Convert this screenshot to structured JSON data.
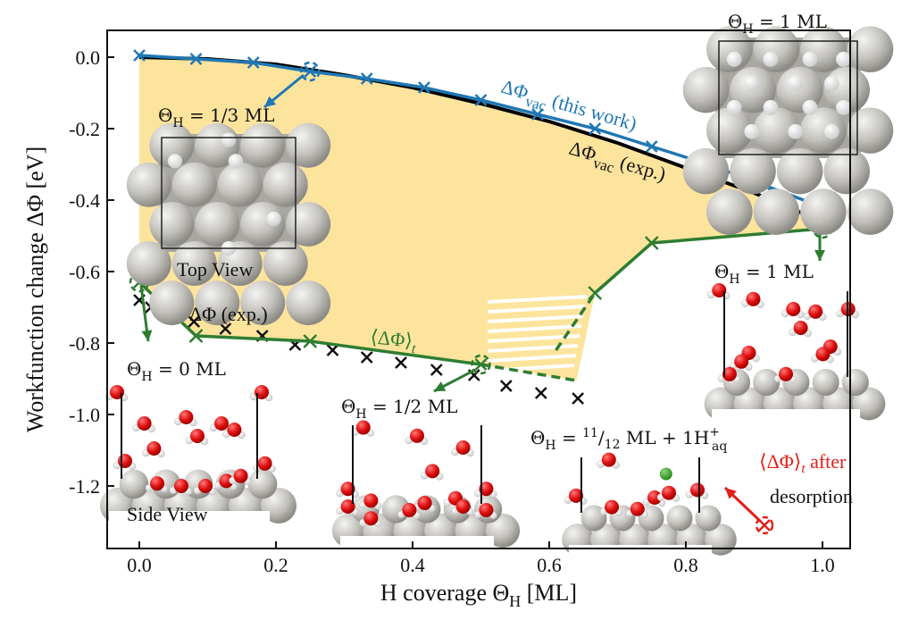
{
  "chart_data": {
    "type": "line",
    "title": "",
    "xlabel": "H coverage Θ_H [ML]",
    "ylabel": "Workfunction change ΔΦ [eV]",
    "xlim": [
      -0.05,
      1.05
    ],
    "ylim": [
      -1.37,
      0.08
    ],
    "xticks": [
      0.0,
      0.2,
      0.4,
      0.6,
      0.8,
      1.0
    ],
    "xtick_labels": [
      "0.0",
      "0.2",
      "0.4",
      "0.6",
      "0.8",
      "1.0"
    ],
    "yticks": [
      0.0,
      -0.2,
      -0.4,
      -0.6,
      -0.8,
      -1.0,
      -1.2
    ],
    "ytick_labels": [
      "0.0",
      "-0.2",
      "-0.4",
      "-0.6",
      "-0.8",
      "-1.0",
      "-1.2"
    ],
    "grid": false,
    "series": [
      {
        "name": "ΔΦ_vac (this work)",
        "color": "#1f77b4",
        "marker": "x",
        "x": [
          0.0,
          0.083,
          0.167,
          0.25,
          0.333,
          0.417,
          0.5,
          0.583,
          0.667,
          0.75,
          0.833,
          0.917,
          1.0
        ],
        "y": [
          0.005,
          -0.005,
          -0.015,
          -0.04,
          -0.06,
          -0.085,
          -0.12,
          -0.16,
          -0.2,
          -0.25,
          -0.3,
          -0.36,
          -0.42
        ]
      },
      {
        "name": "ΔΦ_vac (exp.)",
        "color": "#000000",
        "marker": "none",
        "x": [
          0.0,
          0.1,
          0.2,
          0.3,
          0.4,
          0.5,
          0.6,
          0.7,
          0.8,
          0.9,
          1.0
        ],
        "y": [
          0.0,
          -0.005,
          -0.02,
          -0.05,
          -0.085,
          -0.13,
          -0.18,
          -0.24,
          -0.31,
          -0.38,
          -0.46
        ]
      },
      {
        "name": "ΔΦ (exp.)",
        "color": "#000000",
        "marker": "x",
        "line": false,
        "x": [
          0.0,
          0.017,
          0.037,
          0.08,
          0.126,
          0.18,
          0.228,
          0.283,
          0.333,
          0.383,
          0.435,
          0.49,
          0.537,
          0.588,
          0.642
        ],
        "y": [
          -0.68,
          -0.7,
          -0.72,
          -0.74,
          -0.76,
          -0.78,
          -0.805,
          -0.82,
          -0.84,
          -0.855,
          -0.875,
          -0.89,
          -0.92,
          -0.94,
          -0.955
        ]
      },
      {
        "name": "⟨ΔΦ⟩_t",
        "color": "#2e7d32",
        "marker": "x",
        "segments": [
          {
            "style": "solid",
            "x": [
              0.0,
              0.083,
              0.25,
              0.5
            ],
            "y": [
              -0.63,
              -0.78,
              -0.795,
              -0.86
            ]
          },
          {
            "style": "dashed",
            "x": [
              0.5,
              0.64
            ],
            "y": [
              -0.86,
              -0.905
            ]
          },
          {
            "style": "dashed",
            "x": [
              0.61,
              0.667
            ],
            "y": [
              -0.82,
              -0.66
            ]
          },
          {
            "style": "solid",
            "x": [
              0.667,
              0.75,
              1.0
            ],
            "y": [
              -0.66,
              -0.52,
              -0.48
            ]
          }
        ]
      }
    ],
    "shaded_region": {
      "color": "#fde49c",
      "description": "area between ΔΦ_vac (exp.) and ⟨ΔΦ⟩_t, hatched between 0.5 and 0.667"
    },
    "annotations": [
      {
        "text": "ΔΦ_vac (this work)",
        "color": "#1f77b4"
      },
      {
        "text": "ΔΦ_vac (exp.)",
        "color": "#000000"
      },
      {
        "text": "ΔΦ (exp.)",
        "color": "#000000"
      },
      {
        "text": "⟨ΔΦ⟩_t",
        "color": "#2e7d32"
      },
      {
        "text": "⟨ΔΦ⟩_t after desorption",
        "color": "#e0201b"
      },
      {
        "text": "Θ_H = 1 ML (top view)"
      },
      {
        "text": "Θ_H = 1/3 ML"
      },
      {
        "text": "Top View"
      },
      {
        "text": "Θ_H = 0 ML"
      },
      {
        "text": "Side View"
      },
      {
        "text": "Θ_H = 1/2 ML"
      },
      {
        "text": "Θ_H = 11/12 ML + 1H+_aq"
      },
      {
        "text": "Θ_H = 1 ML (side view)"
      }
    ]
  },
  "labels": {
    "xlabel_main": "H coverage Θ",
    "xlabel_sub": "H",
    "xlabel_tail": " [ML]",
    "ylabel": "Workfunction change ΔΦ [eV]",
    "blue_label": "ΔΦ",
    "blue_sub": "vac",
    "blue_tail": " (this work)",
    "black_label": "ΔΦ",
    "black_sub": "vac",
    "black_tail": " (exp.)",
    "exp_label": "ΔΦ (exp.)",
    "green_label": "⟨ΔΦ⟩",
    "green_sub": "t",
    "red_label_1": "⟨ΔΦ⟩",
    "red_sub": "t",
    "red_label_1_tail": " after",
    "red_label_2": "desorption",
    "theta": "Θ",
    "theta_sub": "H",
    "cov_1_top": " = 1 ML",
    "cov_third": " = 1/3 ML",
    "top_view": "Top View",
    "cov_0": " = 0 ML",
    "side_view": "Side View",
    "cov_half": " = 1/2 ML",
    "cov_11_12_a": " = ",
    "cov_11_12_num": "11",
    "cov_11_12_den": "12",
    "cov_11_12_b": " ML + 1H",
    "cov_11_12_sup": "+",
    "cov_11_12_sub": "aq",
    "cov_1_side": " = 1 ML"
  },
  "colors": {
    "blue": "#1f77b4",
    "green": "#2e7d32",
    "shade": "#fde49c",
    "red": "#e0201b",
    "black": "#000000"
  }
}
